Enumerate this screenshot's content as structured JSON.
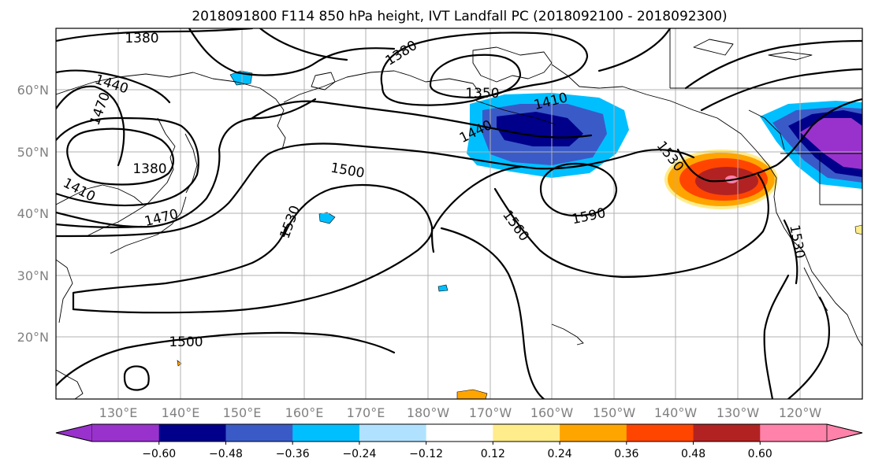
{
  "title": "2018091800 F114 850 hPa height, IVT Landfall PC (2018092100 - 2018092300)",
  "lat_ticks": [
    "60°N",
    "50°N",
    "40°N",
    "30°N",
    "20°N"
  ],
  "lon_ticks": [
    "130°E",
    "140°E",
    "150°E",
    "160°E",
    "170°E",
    "180°W",
    "170°W",
    "160°W",
    "150°W",
    "140°W",
    "130°W",
    "120°W"
  ],
  "contour_labels": [
    "1380",
    "1440",
    "1470",
    "1380",
    "1410",
    "1470",
    "1380",
    "1350",
    "1410",
    "1440",
    "1500",
    "1530",
    "1530",
    "1560",
    "1590",
    "1530",
    "1500"
  ],
  "colorbar": {
    "colors": [
      "#9932cc",
      "#00008b",
      "#3a5ac8",
      "#00bfff",
      "#b0e2ff",
      "#ffffff",
      "#ffec8b",
      "#ffa500",
      "#ff4500",
      "#b22222",
      "#ff82ab"
    ],
    "extend_low": "#9932cc",
    "extend_high": "#ff82ab",
    "tick_labels": [
      "−0.60",
      "−0.48",
      "−0.36",
      "−0.24",
      "−0.12",
      "0.12",
      "0.24",
      "0.36",
      "0.48",
      "0.60"
    ]
  }
}
